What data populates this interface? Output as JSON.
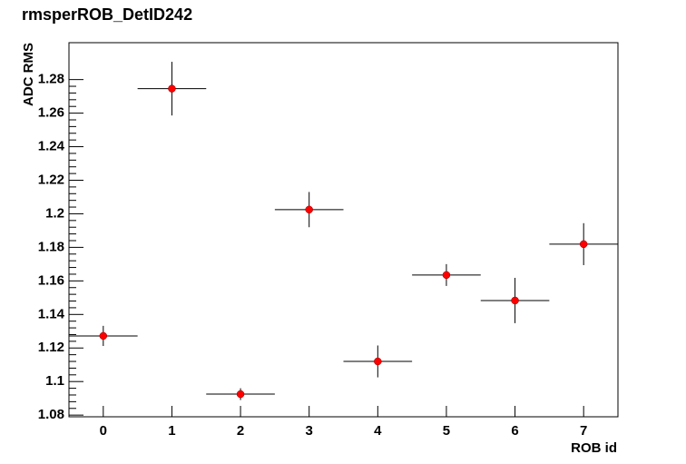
{
  "chart_data": {
    "type": "scatter",
    "title": "rmsperROB_DetID242",
    "x_label": "ROB id",
    "y_label": "ADC RMS",
    "x": [
      0,
      1,
      2,
      3,
      4,
      5,
      6,
      7
    ],
    "values": [
      1.1272,
      1.2746,
      1.0925,
      1.2025,
      1.112,
      1.1635,
      1.1483,
      1.1819
    ],
    "yerr": [
      0.006,
      0.016,
      0.0035,
      0.0105,
      0.0095,
      0.0065,
      0.0135,
      0.0125
    ],
    "xerr": [
      0.5,
      0.5,
      0.5,
      0.5,
      0.5,
      0.5,
      0.5,
      0.5
    ],
    "color": "#ff0000",
    "xlim": [
      -0.5,
      7.5
    ],
    "xticks": [
      0,
      1,
      2,
      3,
      4,
      5,
      6,
      7
    ],
    "ylim": [
      1.079,
      1.302
    ],
    "yticks": [
      1.08,
      1.1,
      1.12,
      1.14,
      1.16,
      1.18,
      1.2,
      1.22,
      1.24,
      1.26,
      1.28
    ],
    "grid": false
  }
}
